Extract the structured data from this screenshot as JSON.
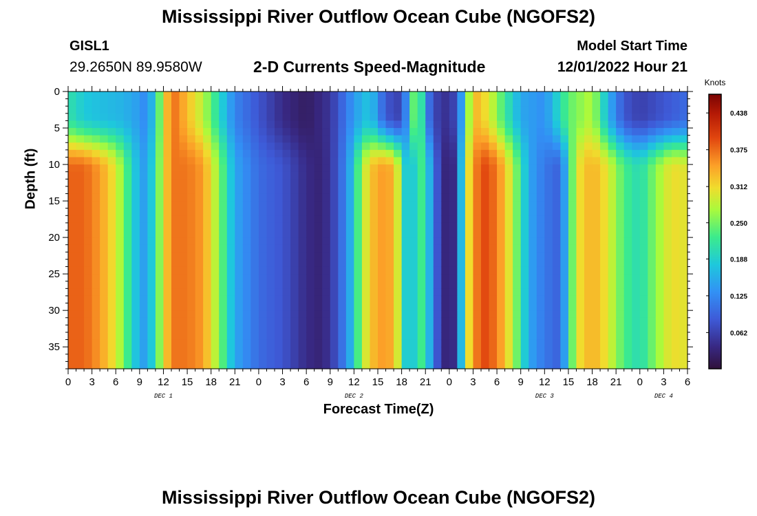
{
  "header": {
    "title": "Mississippi River Outflow Ocean Cube (NGOFS2)",
    "station_id": "GISL1",
    "station_coords": "29.2650N  89.9580W",
    "subtitle": "2-D Currents Speed-Magnitude",
    "model_start_label": "Model Start Time",
    "model_start_value": "12/01/2022 Hour 21"
  },
  "footer": {
    "title": "Mississippi River Outflow Ocean Cube (NGOFS2)"
  },
  "chart_data": {
    "type": "heatmap",
    "xlabel": "Forecast Time(Z)",
    "ylabel": "Depth (ft)",
    "x_ticks": [
      "0",
      "3",
      "6",
      "9",
      "12",
      "15",
      "18",
      "21",
      "0",
      "3",
      "6",
      "9",
      "12",
      "15",
      "18",
      "21",
      "0",
      "3",
      "6",
      "9",
      "12",
      "15",
      "18",
      "21",
      "0",
      "3",
      "6"
    ],
    "x_range_hours": [
      0,
      78
    ],
    "day_labels": [
      {
        "label": "DEC 1",
        "hour": 12
      },
      {
        "label": "DEC 2",
        "hour": 36
      },
      {
        "label": "DEC 3",
        "hour": 60
      },
      {
        "label": "DEC 4",
        "hour": 75
      }
    ],
    "y_ticks": [
      0,
      5,
      10,
      15,
      20,
      25,
      30,
      35
    ],
    "ylim": [
      0,
      38
    ],
    "y_inverted": true,
    "colorbar": {
      "unit": "Knots",
      "range": [
        0,
        0.47
      ],
      "ticks": [
        "0.438",
        "0.375",
        "0.312",
        "0.250",
        "0.188",
        "0.125",
        "0.062"
      ],
      "tick_values": [
        0.438,
        0.375,
        0.312,
        0.25,
        0.188,
        0.125,
        0.062
      ]
    },
    "speed_by_time_surface": [
      [
        0,
        0.21
      ],
      [
        2,
        0.18
      ],
      [
        4,
        0.17
      ],
      [
        7,
        0.16
      ],
      [
        9,
        0.14
      ],
      [
        10,
        0.12
      ],
      [
        11,
        0.2
      ],
      [
        13,
        0.38
      ],
      [
        15,
        0.33
      ],
      [
        17,
        0.28
      ],
      [
        19,
        0.2
      ],
      [
        21,
        0.12
      ],
      [
        24,
        0.08
      ],
      [
        27,
        0.04
      ],
      [
        30,
        0.02
      ],
      [
        33,
        0.05
      ],
      [
        36,
        0.14
      ],
      [
        38,
        0.18
      ],
      [
        40,
        0.08
      ],
      [
        42,
        0.06
      ],
      [
        44,
        0.3
      ],
      [
        45,
        0.12
      ],
      [
        47,
        0.04
      ],
      [
        49,
        0.07
      ],
      [
        51,
        0.34
      ],
      [
        53,
        0.3
      ],
      [
        55,
        0.22
      ],
      [
        57,
        0.15
      ],
      [
        60,
        0.13
      ],
      [
        63,
        0.24
      ],
      [
        66,
        0.28
      ],
      [
        68,
        0.16
      ],
      [
        70,
        0.08
      ],
      [
        72,
        0.06
      ],
      [
        75,
        0.08
      ],
      [
        78,
        0.1
      ]
    ],
    "speed_by_time_deep": [
      [
        0,
        0.38
      ],
      [
        2,
        0.38
      ],
      [
        4,
        0.35
      ],
      [
        6,
        0.3
      ],
      [
        8,
        0.2
      ],
      [
        9,
        0.15
      ],
      [
        10,
        0.14
      ],
      [
        11,
        0.22
      ],
      [
        13,
        0.37
      ],
      [
        15,
        0.37
      ],
      [
        17,
        0.35
      ],
      [
        19,
        0.26
      ],
      [
        21,
        0.15
      ],
      [
        24,
        0.1
      ],
      [
        27,
        0.08
      ],
      [
        30,
        0.04
      ],
      [
        32,
        0.03
      ],
      [
        34,
        0.08
      ],
      [
        36,
        0.18
      ],
      [
        37,
        0.28
      ],
      [
        39,
        0.35
      ],
      [
        41,
        0.34
      ],
      [
        42,
        0.25
      ],
      [
        43,
        0.12
      ],
      [
        44,
        0.25
      ],
      [
        45,
        0.2
      ],
      [
        46,
        0.12
      ],
      [
        47,
        0.04
      ],
      [
        48,
        0.03
      ],
      [
        49,
        0.05
      ],
      [
        50,
        0.28
      ],
      [
        52,
        0.4
      ],
      [
        54,
        0.37
      ],
      [
        56,
        0.28
      ],
      [
        58,
        0.15
      ],
      [
        60,
        0.11
      ],
      [
        62,
        0.09
      ],
      [
        64,
        0.3
      ],
      [
        66,
        0.34
      ],
      [
        68,
        0.3
      ],
      [
        70,
        0.23
      ],
      [
        72,
        0.2
      ],
      [
        74,
        0.26
      ],
      [
        76,
        0.31
      ],
      [
        78,
        0.3
      ]
    ]
  }
}
